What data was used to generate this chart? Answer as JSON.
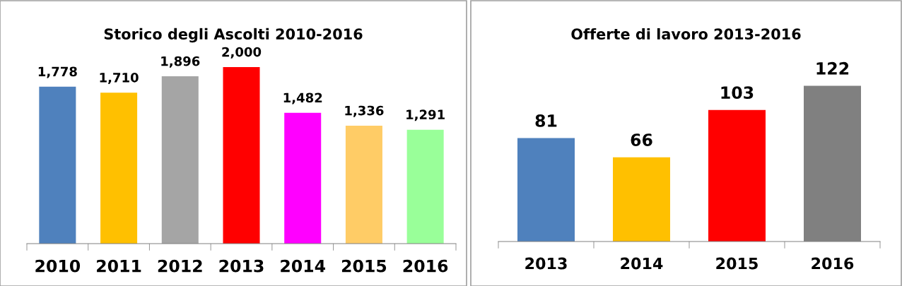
{
  "chart_data": [
    {
      "type": "bar",
      "title": "Storico degli Ascolti 2010-2016",
      "categories": [
        "2010",
        "2011",
        "2012",
        "2013",
        "2014",
        "2015",
        "2016"
      ],
      "values": [
        1778,
        1710,
        1896,
        2000,
        1482,
        1336,
        1291
      ],
      "colors": [
        "#4f81bd",
        "#ffc000",
        "#a5a5a5",
        "#ff0000",
        "#ff00ff",
        "#ffcc66",
        "#99ff99"
      ],
      "value_labels": [
        "1,778",
        "1,710",
        "1,896",
        "2,000",
        "1,482",
        "1,336",
        "1,291"
      ],
      "grid": false,
      "legend": false,
      "tick_labels": "x"
    },
    {
      "type": "bar",
      "title": "Offerte di lavoro 2013-2016",
      "categories": [
        "2013",
        "2014",
        "2015",
        "2016"
      ],
      "values": [
        81,
        66,
        103,
        122
      ],
      "colors": [
        "#4f81bd",
        "#ffc000",
        "#ff0000",
        "#808080"
      ],
      "data_labels": true,
      "grid": false,
      "legend": false,
      "tick_labels": "x"
    }
  ]
}
